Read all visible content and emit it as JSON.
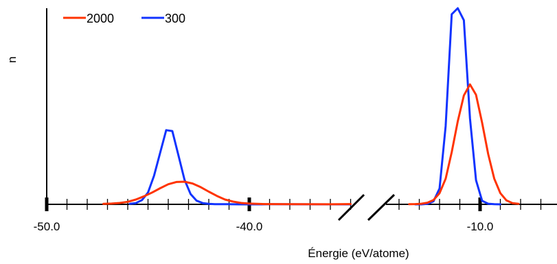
{
  "chart_data": {
    "type": "line",
    "title": "",
    "xlabel": "Énergie (eV/atome)",
    "ylabel": "n",
    "axis_break": true,
    "segments": [
      {
        "xlim": [
          -50.0,
          -35.0
        ],
        "major_ticks": [
          -50.0,
          -40.0
        ],
        "minor_step": 1.0
      },
      {
        "xlim": [
          -14.5,
          -6.5
        ],
        "major_ticks": [
          -10.0
        ],
        "minor_step": 1.0
      }
    ],
    "x_tick_labels": [
      "-50.0",
      "-40.0",
      "-10.0"
    ],
    "ylim": [
      0,
      100
    ],
    "yticks": false,
    "grid": false,
    "legend": {
      "position": "top-left",
      "entries": [
        "2000",
        "300"
      ]
    },
    "series": [
      {
        "name": "2000",
        "color": "#ff3300",
        "segments": [
          {
            "x": [
              -47.2,
              -46.8,
              -46.4,
              -46.0,
              -45.6,
              -45.2,
              -44.8,
              -44.4,
              -44.0,
              -43.6,
              -43.2,
              -42.8,
              -42.4,
              -42.0,
              -41.6,
              -41.2,
              -40.8,
              -40.4,
              -40.0,
              -39.6,
              -39.2,
              -38.0,
              -36.0,
              -35.5,
              -35.0
            ],
            "y": [
              0.3,
              0.5,
              0.9,
              1.7,
              3.2,
              5.3,
              7.8,
              10.7,
              13.3,
              14.8,
              15.0,
              13.8,
              11.4,
              8.4,
              5.6,
              3.2,
              1.8,
              0.9,
              0.5,
              0.3,
              0.2,
              0.1,
              0.05,
              0.1,
              0.2
            ]
          },
          {
            "x": [
              -13.5,
              -13.2,
              -12.9,
              -12.6,
              -12.3,
              -12.0,
              -11.7,
              -11.4,
              -11.1,
              -10.8,
              -10.5,
              -10.2,
              -9.9,
              -9.6,
              -9.3,
              -9.0,
              -8.7,
              -8.4,
              -8.1
            ],
            "y": [
              0.1,
              0.2,
              0.4,
              1.1,
              2.8,
              7.4,
              17.0,
              34.6,
              55.0,
              72.2,
              79.5,
              72.6,
              54.0,
              33.3,
              17.1,
              7.4,
              2.6,
              0.8,
              0.3
            ]
          }
        ]
      },
      {
        "name": "300",
        "color": "#1133ff",
        "segments": [
          {
            "x": [
              -45.9,
              -45.6,
              -45.3,
              -45.0,
              -44.7,
              -44.4,
              -44.1,
              -43.8,
              -43.5,
              -43.2,
              -42.9,
              -42.6,
              -42.3,
              -42.0,
              -41.7,
              -41.4,
              -41.1,
              -40.5,
              -39.5,
              -39.0,
              -36.0,
              -35.0
            ],
            "y": [
              0.3,
              0.8,
              2.8,
              7.8,
              19.0,
              34.2,
              49.2,
              48.6,
              32.5,
              16.4,
              6.8,
              2.4,
              0.8,
              0.3,
              0.15,
              0.1,
              0.1,
              0.0,
              0.0,
              0.1,
              0.0,
              0.0
            ],
            "x_note": ""
          },
          {
            "x": [
              -13.2,
              -12.9,
              -12.6,
              -12.3,
              -12.0,
              -11.7,
              -11.4,
              -11.1,
              -10.8,
              -10.5,
              -10.2,
              -9.9,
              -9.6,
              -9.3,
              -9.0
            ],
            "y": [
              0.0,
              0.0,
              0.3,
              2.0,
              10.5,
              52.0,
              126.0,
              162.0,
              122.0,
              57.0,
              16.0,
              2.3,
              0.4,
              0.1,
              0.0
            ]
          }
        ]
      }
    ]
  }
}
